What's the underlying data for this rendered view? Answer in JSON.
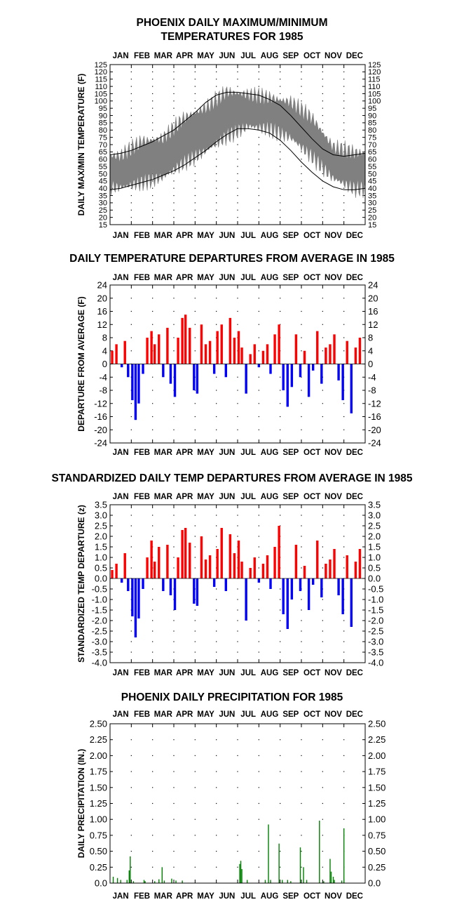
{
  "months": [
    "JAN",
    "FEB",
    "MAR",
    "APR",
    "MAY",
    "JUN",
    "JUL",
    "AUG",
    "SEP",
    "OCT",
    "NOV",
    "DEC"
  ],
  "chart_data": [
    {
      "type": "area",
      "title_lines": [
        "PHOENIX DAILY MAXIMUM/MINIMUM",
        "TEMPERATURES FOR 1985"
      ],
      "ylabel": "DAILY MAX/MIN TEMPERATURE (F)",
      "ylim": [
        15,
        125
      ],
      "yticks": [
        15,
        20,
        25,
        30,
        35,
        40,
        45,
        50,
        55,
        60,
        65,
        70,
        75,
        80,
        85,
        90,
        95,
        100,
        105,
        110,
        115,
        120,
        125
      ],
      "grid": true,
      "x_unit": "month",
      "band_color": "#808080",
      "daily_high_approx": {
        "x": [
          0.5,
          1.5,
          2.5,
          3.5,
          4.5,
          5.5,
          6.5,
          7.5,
          8.5,
          9.5,
          10.5,
          11.5
        ],
        "values": [
          62,
          72,
          74,
          88,
          95,
          106,
          104,
          102,
          99,
          88,
          68,
          64
        ]
      },
      "daily_low_approx": {
        "x": [
          0.5,
          1.5,
          2.5,
          3.5,
          4.5,
          5.5,
          6.5,
          7.5,
          8.5,
          9.5,
          10.5,
          11.5
        ],
        "values": [
          41,
          44,
          48,
          58,
          66,
          76,
          83,
          81,
          75,
          62,
          47,
          40
        ]
      },
      "series": [
        {
          "name": "",
          "x": [
            0,
            0.5,
            1,
            1.5,
            2,
            2.5,
            3,
            3.5,
            4,
            4.5,
            5,
            5.5,
            6,
            6.5,
            7,
            7.5,
            8,
            8.5,
            9,
            9.5,
            10,
            10.5,
            11,
            11.5,
            12
          ],
          "values": [
            63,
            64,
            66,
            69,
            72,
            76,
            80,
            86,
            92,
            99,
            104,
            106,
            106,
            105,
            104,
            101,
            97,
            90,
            82,
            74,
            67,
            63,
            62,
            63,
            64
          ]
        },
        {
          "name": "",
          "x": [
            0,
            0.5,
            1,
            1.5,
            2,
            2.5,
            3,
            3.5,
            4,
            4.5,
            5,
            5.5,
            6,
            6.5,
            7,
            7.5,
            8,
            8.5,
            9,
            9.5,
            10,
            10.5,
            11,
            11.5,
            12
          ],
          "values": [
            39,
            40,
            42,
            44,
            46,
            49,
            52,
            56,
            61,
            66,
            72,
            77,
            81,
            81,
            80,
            78,
            73,
            66,
            58,
            51,
            45,
            41,
            39,
            39,
            40
          ]
        }
      ]
    },
    {
      "type": "bar",
      "title": "DAILY TEMPERATURE DEPARTURES FROM AVERAGE IN 1985",
      "ylabel": "DEPARTURE FROM AVERAGE (F)",
      "ylim": [
        -24,
        24
      ],
      "yticks": [
        -24,
        -20,
        -16,
        -12,
        -8,
        -4,
        0,
        4,
        8,
        12,
        16,
        20,
        24
      ],
      "grid": true,
      "x_unit": "month",
      "positive_color": "#ff0000",
      "negative_color": "#0000ff",
      "x": [
        0.1,
        0.3,
        0.55,
        0.7,
        0.85,
        1.05,
        1.2,
        1.35,
        1.55,
        1.75,
        1.95,
        2.1,
        2.3,
        2.5,
        2.7,
        2.85,
        3.05,
        3.2,
        3.4,
        3.55,
        3.75,
        3.95,
        4.1,
        4.3,
        4.5,
        4.7,
        4.9,
        5.05,
        5.25,
        5.45,
        5.65,
        5.85,
        6.05,
        6.2,
        6.4,
        6.6,
        6.8,
        7.0,
        7.2,
        7.4,
        7.55,
        7.75,
        7.95,
        8.15,
        8.35,
        8.55,
        8.75,
        8.95,
        9.15,
        9.35,
        9.55,
        9.75,
        9.95,
        10.15,
        10.35,
        10.55,
        10.75,
        10.95,
        11.15,
        11.35,
        11.55,
        11.75
      ],
      "values": [
        4,
        6,
        -1,
        7,
        -4,
        -11,
        -17,
        -12,
        -3,
        8,
        10,
        6,
        9,
        -4,
        11,
        -6,
        -10,
        8,
        14,
        15,
        11,
        -8,
        -9,
        12,
        6,
        7,
        -3,
        10,
        12,
        -4,
        14,
        8,
        10,
        5,
        -9,
        3,
        6,
        -1,
        4,
        6,
        -3,
        9,
        12,
        -8,
        -13,
        -7,
        9,
        -4,
        4,
        -10,
        -2,
        10,
        -6,
        5,
        6,
        9,
        -5,
        -11,
        7,
        -15,
        5,
        8
      ]
    },
    {
      "type": "bar",
      "title": "STANDARDIZED DAILY TEMP DEPARTURES FROM AVERAGE IN 1985",
      "ylabel": "STANDARDIZED TEMP DEPARTURE (z)",
      "ylim": [
        -4.0,
        3.5
      ],
      "yticks": [
        -4.0,
        -3.5,
        -3.0,
        -2.5,
        -2.0,
        -1.5,
        -1.0,
        -0.5,
        0.0,
        0.5,
        1.0,
        1.5,
        2.0,
        2.5,
        3.0,
        3.5
      ],
      "ytick_labels": [
        "-4.0",
        "-3.5",
        "-3.0",
        "-2.5",
        "-2.0",
        "-1.5",
        "-1.0",
        "-0.5",
        "0.0",
        "0.5",
        "1.0",
        "1.5",
        "2.0",
        "2.5",
        "3.0",
        "3.5"
      ],
      "grid": true,
      "x_unit": "month",
      "positive_color": "#ff0000",
      "negative_color": "#0000ff",
      "x": [
        0.1,
        0.3,
        0.55,
        0.7,
        0.85,
        1.05,
        1.2,
        1.35,
        1.55,
        1.75,
        1.95,
        2.1,
        2.3,
        2.5,
        2.7,
        2.85,
        3.05,
        3.2,
        3.4,
        3.55,
        3.75,
        3.95,
        4.1,
        4.3,
        4.5,
        4.7,
        4.9,
        5.05,
        5.25,
        5.45,
        5.65,
        5.85,
        6.05,
        6.2,
        6.4,
        6.6,
        6.8,
        7.0,
        7.2,
        7.4,
        7.55,
        7.75,
        7.95,
        8.15,
        8.35,
        8.55,
        8.75,
        8.95,
        9.15,
        9.35,
        9.55,
        9.75,
        9.95,
        10.15,
        10.35,
        10.55,
        10.75,
        10.95,
        11.15,
        11.35,
        11.55,
        11.75
      ],
      "values": [
        0.4,
        0.7,
        -0.2,
        1.2,
        -0.6,
        -1.8,
        -2.8,
        -1.9,
        -0.5,
        1.0,
        1.8,
        0.8,
        1.5,
        -0.6,
        1.6,
        -0.8,
        -1.5,
        1.0,
        2.3,
        2.4,
        1.7,
        -1.2,
        -1.3,
        2.0,
        0.9,
        1.1,
        -0.4,
        1.4,
        2.4,
        -0.6,
        2.1,
        1.2,
        1.8,
        0.8,
        -2.0,
        0.5,
        1.0,
        -0.2,
        0.7,
        1.1,
        -0.5,
        1.5,
        2.5,
        -1.7,
        -2.4,
        -1.0,
        1.6,
        -0.6,
        0.6,
        -1.5,
        -0.3,
        1.8,
        -0.9,
        0.7,
        0.9,
        1.4,
        -0.8,
        -1.7,
        1.1,
        -2.3,
        0.8,
        1.4
      ]
    },
    {
      "type": "bar",
      "title": "PHOENIX DAILY PRECIPITATION FOR 1985",
      "ylabel": "DAILY PRECIPITATION (IN.)",
      "ylim": [
        0.0,
        2.5
      ],
      "yticks": [
        0.0,
        0.25,
        0.5,
        0.75,
        1.0,
        1.25,
        1.5,
        1.75,
        2.0,
        2.25,
        2.5
      ],
      "ytick_labels": [
        "0.0",
        "0.25",
        "0.50",
        "0.75",
        "1.00",
        "1.25",
        "1.50",
        "1.75",
        "2.00",
        "2.25",
        "2.50"
      ],
      "grid": true,
      "x_unit": "month",
      "bar_color": "#008000",
      "x": [
        0.15,
        0.35,
        0.5,
        0.8,
        0.9,
        0.95,
        1.1,
        1.6,
        1.65,
        2.1,
        2.3,
        2.45,
        2.55,
        2.9,
        3.1,
        3.4,
        6.1,
        6.15,
        6.2,
        6.45,
        7.3,
        7.45,
        7.55,
        7.95,
        8.1,
        8.35,
        8.5,
        8.95,
        9.1,
        9.25,
        9.85,
        10.05,
        10.35,
        10.4,
        10.5,
        10.55,
        10.9,
        11.0
      ],
      "values": [
        0.1,
        0.08,
        0.05,
        0.05,
        0.2,
        0.42,
        0.03,
        0.05,
        0.03,
        0.03,
        0.06,
        0.25,
        0.04,
        0.07,
        0.04,
        0.04,
        0.3,
        0.35,
        0.22,
        0.05,
        0.05,
        0.92,
        0.05,
        0.62,
        0.05,
        0.05,
        0.03,
        0.56,
        0.25,
        0.05,
        0.98,
        0.03,
        0.38,
        0.18,
        0.1,
        0.05,
        0.04,
        0.86
      ]
    }
  ]
}
